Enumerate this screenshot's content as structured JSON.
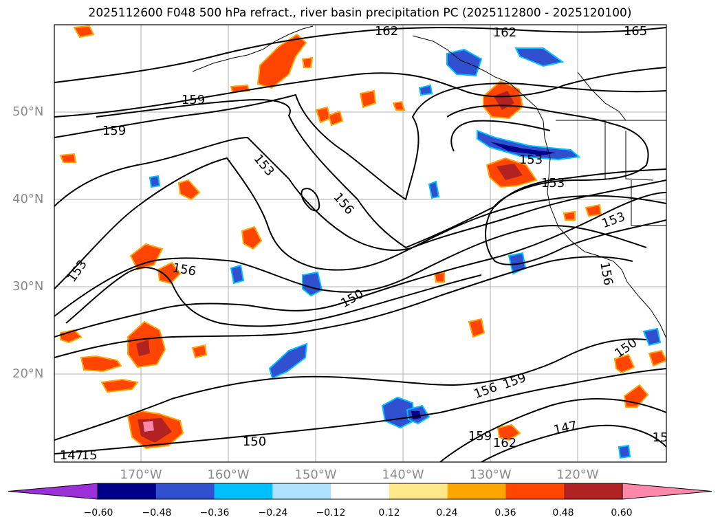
{
  "title": "2025112600 F048 500 hPa refract., river basin precipitation PC (2025112800 - 2025120100)",
  "map": {
    "lat_labels": [
      "50°N",
      "40°N",
      "30°N",
      "20°N"
    ],
    "lon_labels": [
      "170°W",
      "160°W",
      "150°W",
      "140°W",
      "130°W",
      "120°W"
    ],
    "gridlines": true,
    "contour_labels": [
      "162",
      "162",
      "165",
      "159",
      "159",
      "153",
      "156",
      "153",
      "153",
      "153",
      "156",
      "153",
      "156",
      "150",
      "150",
      "156",
      "159",
      "159",
      "162",
      "147",
      "150",
      "147",
      "15"
    ]
  },
  "colorbar": {
    "ticks": [
      "−0.60",
      "−0.48",
      "−0.36",
      "−0.24",
      "−0.12",
      "0.12",
      "0.24",
      "0.36",
      "0.48",
      "0.60"
    ],
    "colors": [
      "#9b30d9",
      "#00008b",
      "#3050d0",
      "#00bfff",
      "#aee0ff",
      "#ffffff",
      "#ffe88a",
      "#ffa500",
      "#ff4500",
      "#b22222",
      "#ff88aa"
    ],
    "extend": "both"
  }
}
